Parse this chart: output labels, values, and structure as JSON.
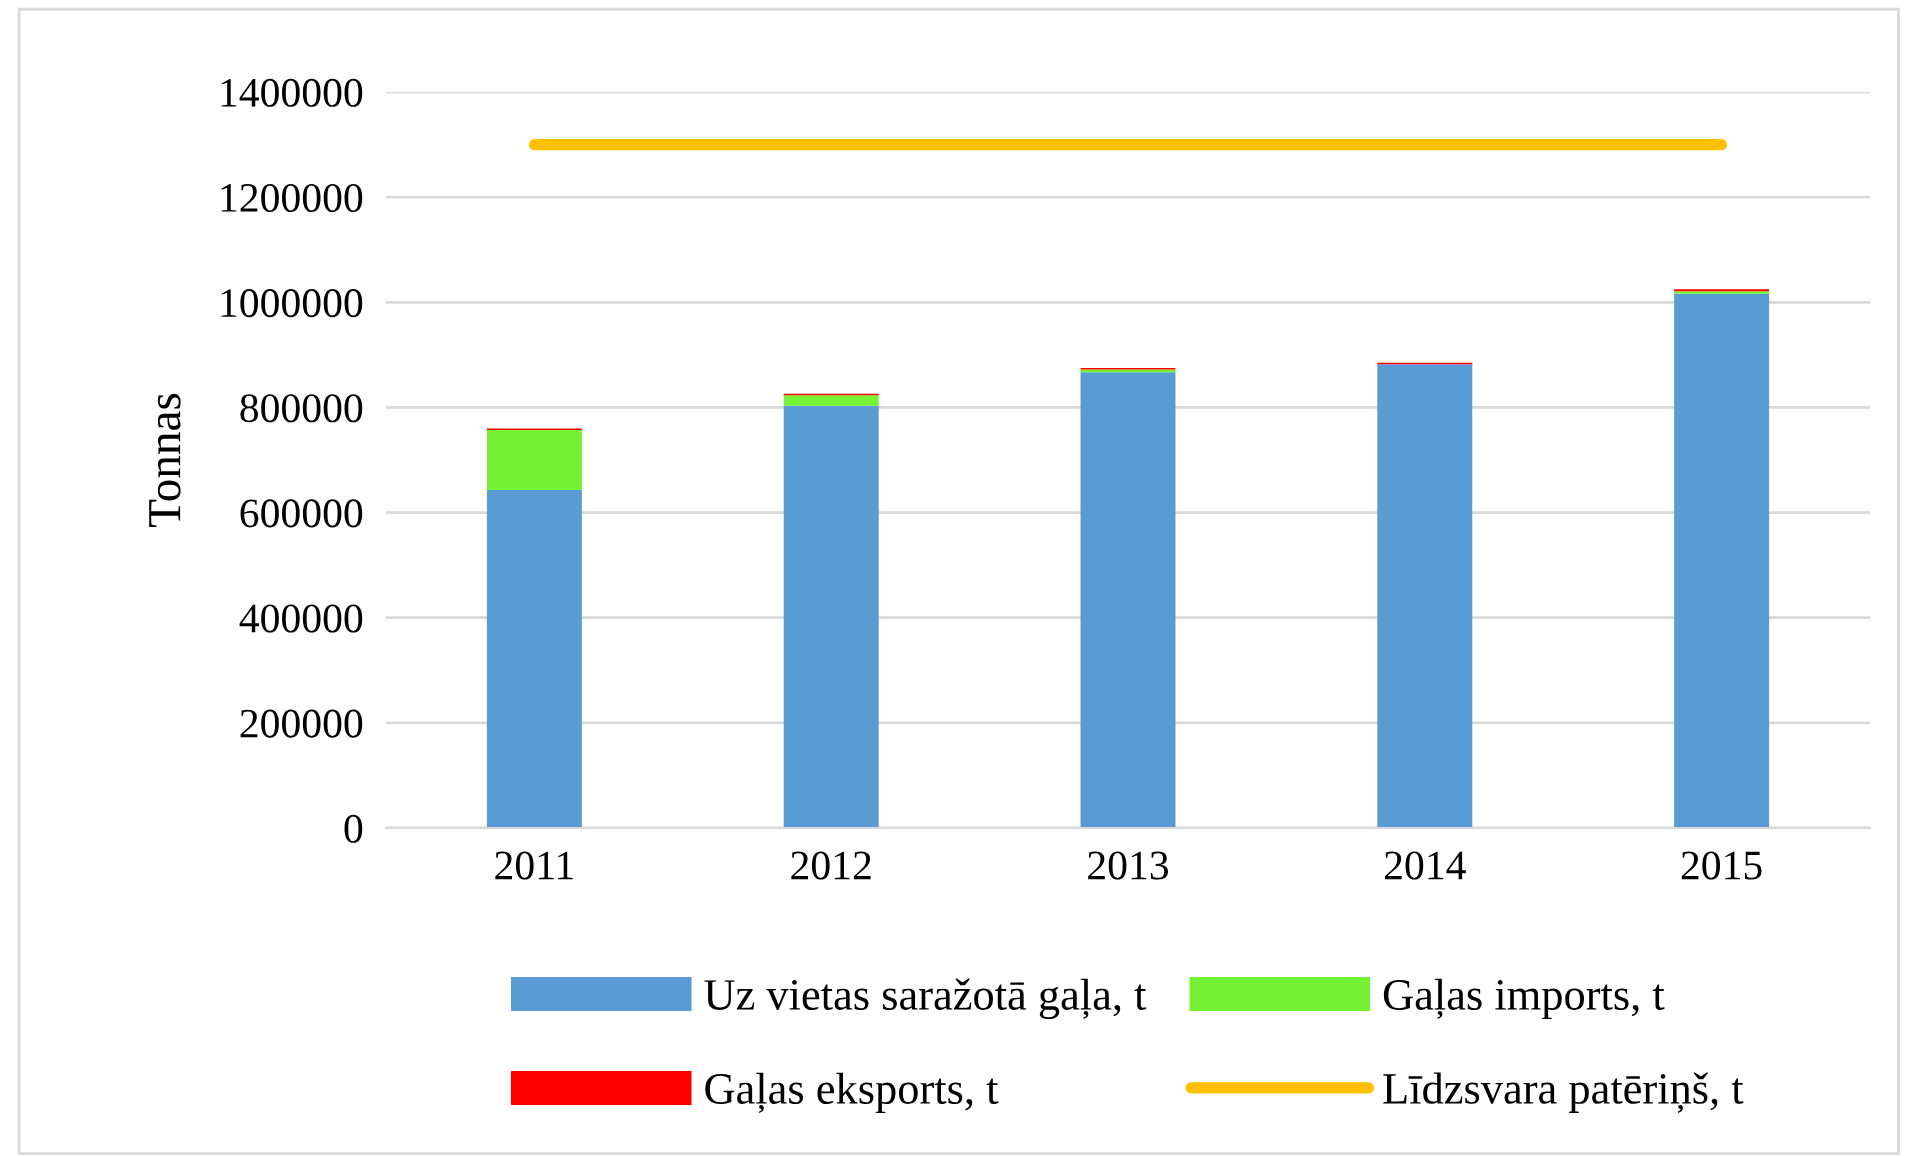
{
  "chart_data": {
    "type": "bar",
    "stacked": true,
    "ylabel": "Tonnas",
    "categories": [
      "2011",
      "2012",
      "2013",
      "2014",
      "2015"
    ],
    "series": [
      {
        "name": "Uz vietas saražotā gaļa, t",
        "color": "#5b9bd5",
        "values": [
          643000,
          803000,
          867000,
          882000,
          1016000
        ]
      },
      {
        "name": "Gaļas imports, t",
        "color": "#75f233",
        "values": [
          114000,
          20000,
          5000,
          null,
          5000
        ]
      },
      {
        "name": "Gaļas eksports, t",
        "color": "#ff0000",
        "values": [
          3000,
          3000,
          3000,
          3000,
          4000
        ]
      },
      {
        "name": "Līdzsvara patēriņš, t",
        "type": "line",
        "color": "#ffc000",
        "values": [
          1300000,
          1300000,
          1300000,
          1300000,
          1300000
        ]
      }
    ],
    "ylim": [
      0,
      1400000
    ],
    "yticks": [
      0,
      200000,
      400000,
      600000,
      800000,
      1000000,
      1200000,
      1400000
    ],
    "grid": "y",
    "legend": "bottom"
  }
}
